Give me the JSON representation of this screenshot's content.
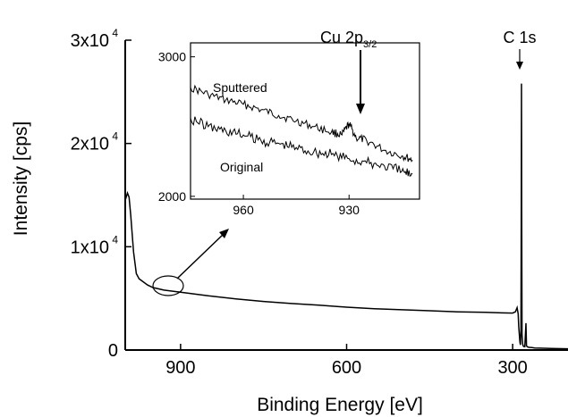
{
  "chart_data": [
    {
      "type": "line",
      "xlabel": "Binding Energy [eV]",
      "ylabel": "Intensity [cps]",
      "x_reversed": true,
      "xlim": [
        1000,
        200
      ],
      "ylim": [
        0,
        30000
      ],
      "x_ticks": [
        {
          "value": 900,
          "label": "900"
        },
        {
          "value": 600,
          "label": "600"
        },
        {
          "value": 300,
          "label": "300"
        }
      ],
      "y_ticks": [
        {
          "value": 0,
          "label": "0",
          "base": "0",
          "exp": ""
        },
        {
          "value": 10000,
          "label": "1x10^4",
          "base": "1x10",
          "exp": "4"
        },
        {
          "value": 20000,
          "label": "2x10^4",
          "base": "2x10",
          "exp": "4"
        },
        {
          "value": 30000,
          "label": "3x10^4",
          "base": "3x10",
          "exp": "4"
        }
      ],
      "series": [
        {
          "x": [
            1000,
            996,
            993,
            990,
            985,
            980,
            975,
            970,
            960,
            950,
            930,
            900,
            850,
            800,
            750,
            700,
            650,
            600,
            550,
            500,
            450,
            400,
            350,
            320,
            300,
            295,
            292,
            290,
            289,
            287,
            286,
            285,
            284.5,
            284,
            283.5,
            283,
            282,
            281,
            280,
            278,
            276,
            275,
            273,
            272,
            270,
            265,
            260,
            250,
            230,
            200
          ],
          "y": [
            14500,
            15200,
            14800,
            13000,
            9500,
            7400,
            6900,
            6700,
            6300,
            6050,
            5800,
            5600,
            5250,
            4950,
            4700,
            4500,
            4350,
            4150,
            4000,
            3900,
            3800,
            3700,
            3650,
            3600,
            3580,
            3700,
            4100,
            3500,
            2300,
            800,
            500,
            2000,
            12000,
            25800,
            12000,
            1500,
            600,
            400,
            350,
            330,
            2600,
            400,
            300,
            280,
            260,
            230,
            200,
            180,
            150,
            120
          ]
        }
      ],
      "annotations": {
        "peak_c1s": {
          "base": "C 1s"
        },
        "circle_region_x": 910
      }
    },
    {
      "type": "line",
      "inset": true,
      "x_reversed": true,
      "xlim": [
        975,
        910
      ],
      "ylim": [
        1980,
        3100
      ],
      "x_ticks": [
        {
          "value": 960,
          "label": "960"
        },
        {
          "value": 930,
          "label": "930"
        }
      ],
      "y_ticks": [
        {
          "value": 2000,
          "label": "2000"
        },
        {
          "value": 3000,
          "label": "3000"
        }
      ],
      "series": [
        {
          "name": "Sputtered",
          "x": [
            975,
            970,
            965,
            960,
            955,
            950,
            945,
            940,
            935,
            932,
            930,
            928,
            925,
            920,
            915,
            912
          ],
          "y": [
            2780,
            2730,
            2690,
            2660,
            2620,
            2580,
            2540,
            2500,
            2460,
            2440,
            2520,
            2420,
            2400,
            2330,
            2290,
            2260
          ]
        },
        {
          "name": "Original",
          "x": [
            975,
            970,
            965,
            960,
            955,
            950,
            945,
            940,
            935,
            930,
            925,
            920,
            915,
            912
          ],
          "y": [
            2560,
            2500,
            2470,
            2440,
            2400,
            2380,
            2350,
            2320,
            2300,
            2270,
            2240,
            2220,
            2180,
            2160
          ]
        }
      ],
      "annotations": {
        "peak_cu": {
          "base": "Cu 2p",
          "sub": "3/2",
          "x": 932
        }
      }
    }
  ]
}
